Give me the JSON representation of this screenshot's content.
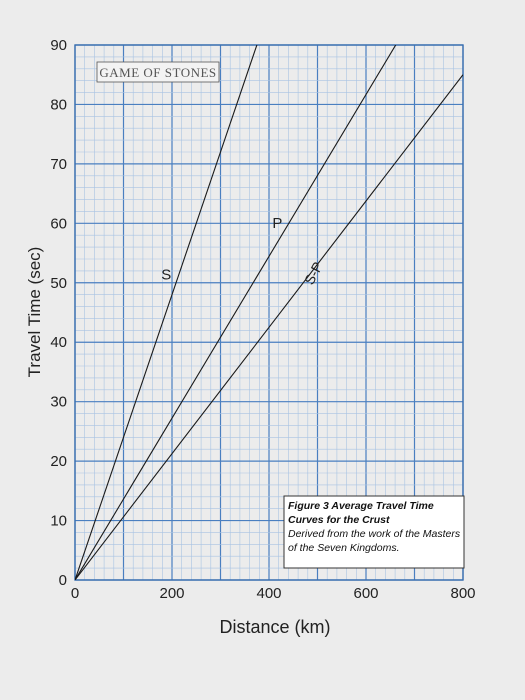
{
  "logo_text": "GAME OF STONES",
  "chart_data": {
    "type": "line",
    "xlabel": "Distance (km)",
    "ylabel": "Travel Time (sec)",
    "xlim": [
      0,
      800
    ],
    "ylim": [
      0,
      90
    ],
    "x_ticks": [
      0,
      200,
      400,
      600,
      800
    ],
    "y_ticks": [
      0,
      10,
      20,
      30,
      40,
      50,
      60,
      70,
      80,
      90
    ],
    "grid": true,
    "series": [
      {
        "name": "S",
        "x": [
          0,
          400
        ],
        "y": [
          0,
          96
        ]
      },
      {
        "name": "P",
        "x": [
          0,
          720
        ],
        "y": [
          0,
          98
        ]
      },
      {
        "name": "S-P",
        "x": [
          0,
          800
        ],
        "y": [
          0,
          85
        ]
      }
    ],
    "caption": {
      "title": "Figure 3 Average Travel Time Curves for the Crust",
      "body": "Derived from the work of the Masters of the Seven Kingdoms."
    }
  }
}
